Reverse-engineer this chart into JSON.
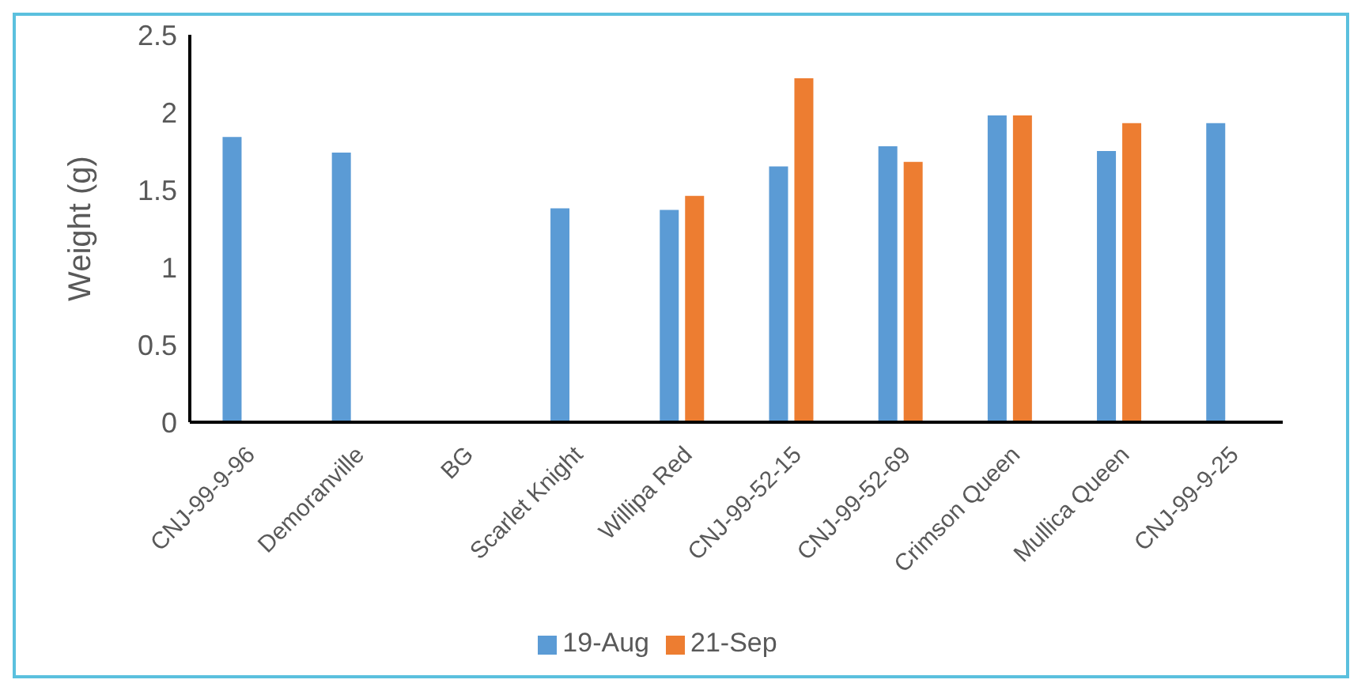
{
  "chart_data": {
    "type": "bar",
    "ylabel": "Weight (g)",
    "categories": [
      "CNJ-99-9-96",
      "Demoranville",
      "BG",
      "Scarlet Knight",
      "Willipa Red",
      "CNJ-99-52-15",
      "CNJ-99-52-69",
      "Crimson Queen",
      "Mullica Queen",
      "CNJ-99-9-25"
    ],
    "series": [
      {
        "name": "19-Aug",
        "color": "#5b9bd5",
        "values": [
          1.84,
          1.74,
          null,
          1.38,
          1.37,
          1.65,
          1.78,
          1.98,
          1.75,
          1.93
        ]
      },
      {
        "name": "21-Sep",
        "color": "#ed7d31",
        "values": [
          null,
          null,
          null,
          null,
          1.46,
          2.22,
          1.68,
          1.98,
          1.93,
          null
        ]
      }
    ],
    "ylim": [
      0,
      2.5
    ],
    "yticks": [
      0,
      0.5,
      1,
      1.5,
      2,
      2.5
    ],
    "grid": false,
    "legend": "bottom"
  }
}
